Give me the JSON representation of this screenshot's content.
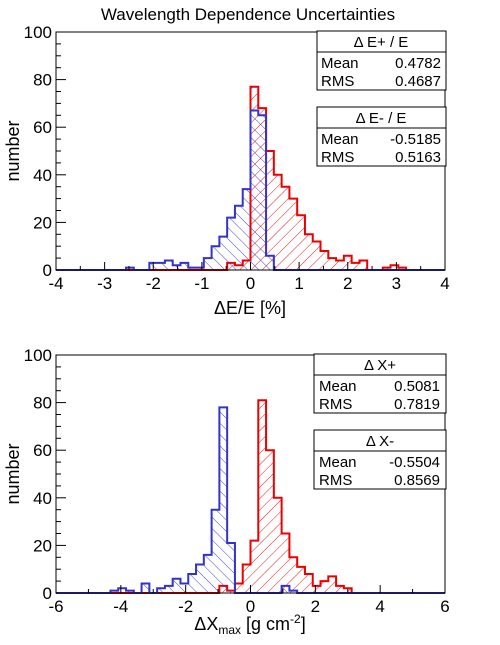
{
  "title": "Wavelength Dependence Uncertainties",
  "colors": {
    "plus": "#ee0000",
    "minus": "#3333cc",
    "axis": "#000000",
    "background": "#ffffff"
  },
  "chart_data": [
    {
      "type": "histogram",
      "ylabel": "number",
      "xlabel_main": "ΔE/E [%]",
      "xlim": [
        -4,
        4
      ],
      "ylim": [
        0,
        100
      ],
      "xticks": [
        -4,
        -3,
        -2,
        -1,
        0,
        1,
        2,
        3,
        4
      ],
      "yticks": [
        0,
        20,
        40,
        60,
        80,
        100
      ],
      "bin_start": -4,
      "bin_width": 0.16,
      "series": [
        {
          "key": "plus",
          "hatch": "up",
          "stats": {
            "title": "Δ E+ / E",
            "mean_label": "Mean",
            "mean": "0.4782",
            "rms_label": "RMS",
            "rms": "0.4687"
          },
          "values": [
            0,
            0,
            0,
            0,
            0,
            0,
            0,
            0,
            0,
            0,
            0,
            0,
            0,
            0,
            0,
            0,
            0,
            0,
            0,
            0,
            0,
            0,
            3,
            2,
            4,
            77,
            68,
            50,
            40,
            35,
            30,
            23,
            15,
            12,
            8,
            5,
            4,
            6,
            3,
            4,
            0,
            0,
            1,
            2,
            1,
            0,
            0,
            0,
            0,
            0
          ]
        },
        {
          "key": "minus",
          "hatch": "down",
          "stats": {
            "title": "Δ E- / E",
            "mean_label": "Mean",
            "mean": "-0.5185",
            "rms_label": "RMS",
            "rms": "0.5163"
          },
          "values": [
            0,
            0,
            0,
            0,
            0,
            0,
            0,
            0,
            0,
            1,
            0,
            0,
            3,
            3,
            4,
            2,
            3,
            1,
            1,
            5,
            10,
            14,
            22,
            27,
            34,
            67,
            65,
            6,
            0,
            0,
            0,
            0,
            0,
            0,
            0,
            0,
            0,
            0,
            0,
            0,
            0,
            0,
            0,
            0,
            0,
            0,
            0,
            0,
            0,
            0
          ]
        }
      ]
    },
    {
      "type": "histogram",
      "ylabel": "number",
      "xlabel_main": "ΔX",
      "xlabel_sub": "max",
      "xlabel_unit": " [g cm",
      "xlabel_sup": "-2",
      "xlabel_end": "]",
      "xlim": [
        -6,
        6
      ],
      "ylim": [
        0,
        100
      ],
      "xticks": [
        -6,
        -4,
        -2,
        0,
        2,
        4,
        6
      ],
      "yticks": [
        0,
        20,
        40,
        60,
        80,
        100
      ],
      "bin_start": -6,
      "bin_width": 0.24,
      "series": [
        {
          "key": "plus",
          "hatch": "up",
          "stats": {
            "title": "Δ X+",
            "mean_label": "Mean",
            "mean": "0.5081",
            "rms_label": "RMS",
            "rms": "0.7819"
          },
          "values": [
            0,
            0,
            0,
            0,
            0,
            0,
            0,
            0,
            0,
            0,
            0,
            0,
            0,
            0,
            0,
            0,
            0,
            0,
            0,
            0,
            0,
            3,
            1,
            4,
            12,
            22,
            81,
            60,
            40,
            25,
            15,
            11,
            8,
            3,
            5,
            7,
            3,
            2,
            0,
            0,
            0,
            0,
            0,
            0,
            0,
            0,
            0,
            0,
            0,
            0
          ]
        },
        {
          "key": "minus",
          "hatch": "down",
          "stats": {
            "title": "Δ X-",
            "mean_label": "Mean",
            "mean": "-0.5504",
            "rms_label": "RMS",
            "rms": "0.8569"
          },
          "values": [
            0,
            0,
            0,
            0,
            0,
            0,
            0,
            1,
            2,
            1,
            0,
            4,
            0,
            2,
            3,
            6,
            4,
            8,
            12,
            16,
            35,
            78,
            21,
            0,
            0,
            0,
            0,
            0,
            0,
            3,
            1,
            0,
            0,
            0,
            0,
            0,
            0,
            0,
            0,
            0,
            0,
            0,
            0,
            0,
            0,
            0,
            0,
            0,
            0,
            0
          ]
        }
      ]
    }
  ]
}
